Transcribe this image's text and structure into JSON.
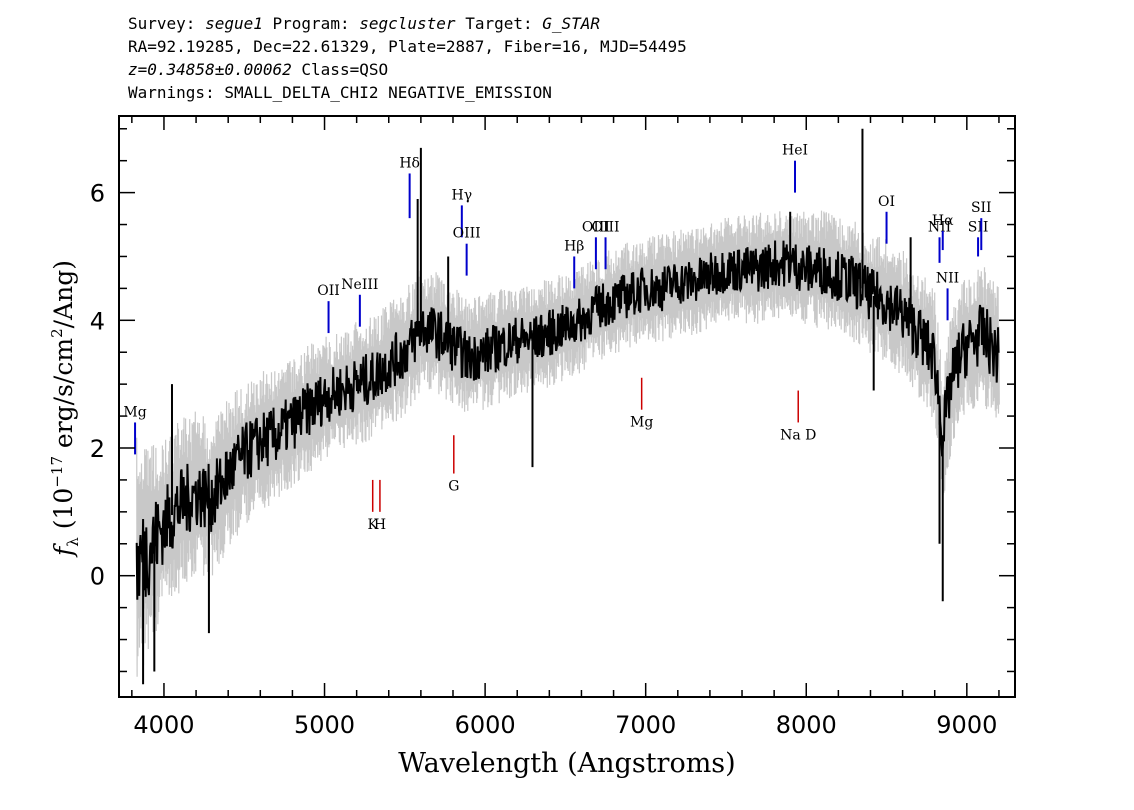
{
  "header": {
    "survey_label": "Survey:",
    "survey": "segue1",
    "program_label": "Program:",
    "program": "segcluster",
    "target_label": "Target:",
    "target": "G_STAR",
    "line2": "RA=92.19285, Dec=22.61329, Plate=2887, Fiber=16, MJD=54495",
    "redshift": "z=0.34858±0.00062",
    "class_text": "Class=QSO",
    "warnings": "Warnings: SMALL_DELTA_CHI2 NEGATIVE_EMISSION"
  },
  "chart_data": {
    "type": "line",
    "xlabel": "Wavelength (Angstroms)",
    "ylabel": "f_λ (10^-17 erg/s/cm^2/Ang)",
    "xlim": [
      3720,
      9300
    ],
    "ylim": [
      -1.9,
      7.2
    ],
    "x_ticks": [
      4000,
      5000,
      6000,
      7000,
      8000,
      9000
    ],
    "y_ticks": [
      0,
      2,
      4,
      6
    ],
    "grid": false,
    "colors": {
      "error": "#c8c8c8",
      "flux": "#000000",
      "emission": "#0000cc",
      "absorption": "#cc0000"
    },
    "series": [
      {
        "role": "flux",
        "x": [
          3830,
          3900,
          4000,
          4100,
          4200,
          4300,
          4400,
          4500,
          4600,
          4700,
          4800,
          4900,
          5000,
          5100,
          5200,
          5300,
          5400,
          5500,
          5560,
          5600,
          5700,
          5800,
          5900,
          6000,
          6100,
          6200,
          6300,
          6400,
          6500,
          6600,
          6700,
          6800,
          6900,
          7000,
          7100,
          7200,
          7300,
          7400,
          7500,
          7600,
          7700,
          7800,
          7900,
          8000,
          8100,
          8200,
          8300,
          8400,
          8500,
          8600,
          8700,
          8800,
          8850,
          8900,
          8950,
          9000,
          9100,
          9200
        ],
        "y": [
          0.2,
          0.4,
          0.8,
          1.1,
          1.3,
          1.2,
          1.6,
          1.9,
          2.1,
          2.2,
          2.4,
          2.6,
          2.8,
          2.9,
          3.0,
          3.1,
          3.3,
          3.5,
          3.7,
          3.9,
          3.8,
          3.6,
          3.4,
          3.5,
          3.6,
          3.7,
          3.7,
          3.8,
          3.9,
          4.0,
          4.2,
          4.3,
          4.4,
          4.5,
          4.5,
          4.6,
          4.6,
          4.7,
          4.8,
          4.8,
          4.8,
          4.9,
          4.9,
          4.8,
          4.8,
          4.7,
          4.6,
          4.4,
          4.3,
          4.1,
          3.8,
          3.4,
          2.2,
          3.0,
          3.4,
          3.6,
          3.8,
          3.4
        ]
      },
      {
        "role": "error",
        "x": [
          3830,
          4000,
          4500,
          5000,
          5500,
          6000,
          6500,
          7000,
          7500,
          8000,
          8500,
          9000,
          9200
        ],
        "y": [
          1.4,
          1.0,
          0.8,
          0.7,
          0.7,
          0.65,
          0.6,
          0.6,
          0.6,
          0.65,
          0.7,
          0.8,
          0.8
        ]
      }
    ],
    "emission_lines": [
      {
        "label": "Mg",
        "x": 3820,
        "y_bottom": 1.9,
        "y_top": 2.4
      },
      {
        "label": "OII",
        "x": 5025,
        "y_bottom": 3.8,
        "y_top": 4.3
      },
      {
        "label": "NeIII",
        "x": 5220,
        "y_bottom": 3.9,
        "y_top": 4.4
      },
      {
        "label": "Hδ",
        "x": 5530,
        "y_bottom": 5.6,
        "y_top": 6.3
      },
      {
        "label": "Hγ",
        "x": 5855,
        "y_bottom": 5.3,
        "y_top": 5.8
      },
      {
        "label": "OIII",
        "x": 5885,
        "y_bottom": 4.7,
        "y_top": 5.2
      },
      {
        "label": "Hβ",
        "x": 6555,
        "y_bottom": 4.5,
        "y_top": 5.0
      },
      {
        "label": "OIII",
        "x": 6690,
        "y_bottom": 4.8,
        "y_top": 5.3
      },
      {
        "label": "OIII",
        "x": 6750,
        "y_bottom": 4.8,
        "y_top": 5.3
      },
      {
        "label": "HeI",
        "x": 7930,
        "y_bottom": 6.0,
        "y_top": 6.5
      },
      {
        "label": "OI",
        "x": 8500,
        "y_bottom": 5.2,
        "y_top": 5.7
      },
      {
        "label": "NII",
        "x": 8830,
        "y_bottom": 4.9,
        "y_top": 5.3
      },
      {
        "label": "Hα",
        "x": 8850,
        "y_bottom": 5.1,
        "y_top": 5.4
      },
      {
        "label": "NII",
        "x": 8880,
        "y_bottom": 4.0,
        "y_top": 4.5
      },
      {
        "label": "SII",
        "x": 9070,
        "y_bottom": 5.0,
        "y_top": 5.3
      },
      {
        "label": "SII",
        "x": 9090,
        "y_bottom": 5.1,
        "y_top": 5.6
      }
    ],
    "absorption_lines": [
      {
        "label": "K",
        "x": 5300,
        "y_bottom": 1.0,
        "y_top": 1.5
      },
      {
        "label": "H",
        "x": 5345,
        "y_bottom": 1.0,
        "y_top": 1.5
      },
      {
        "label": "G",
        "x": 5805,
        "y_bottom": 1.6,
        "y_top": 2.2
      },
      {
        "label": "Mg",
        "x": 6975,
        "y_bottom": 2.6,
        "y_top": 3.1
      },
      {
        "label": "Na D",
        "x": 7950,
        "y_bottom": 2.4,
        "y_top": 2.9
      }
    ],
    "spikes": [
      {
        "x": 3870,
        "y": -1.7
      },
      {
        "x": 3940,
        "y": -1.5
      },
      {
        "x": 4050,
        "y": 3.0
      },
      {
        "x": 4280,
        "y": -0.9
      },
      {
        "x": 5580,
        "y": 5.9
      },
      {
        "x": 5600,
        "y": 6.7
      },
      {
        "x": 5770,
        "y": 5.0
      },
      {
        "x": 6295,
        "y": 1.7
      },
      {
        "x": 7900,
        "y": 5.7
      },
      {
        "x": 8350,
        "y": 7.0
      },
      {
        "x": 8420,
        "y": 2.9
      },
      {
        "x": 8650,
        "y": 5.3
      },
      {
        "x": 8830,
        "y": 0.5
      },
      {
        "x": 8850,
        "y": -0.4
      }
    ]
  }
}
